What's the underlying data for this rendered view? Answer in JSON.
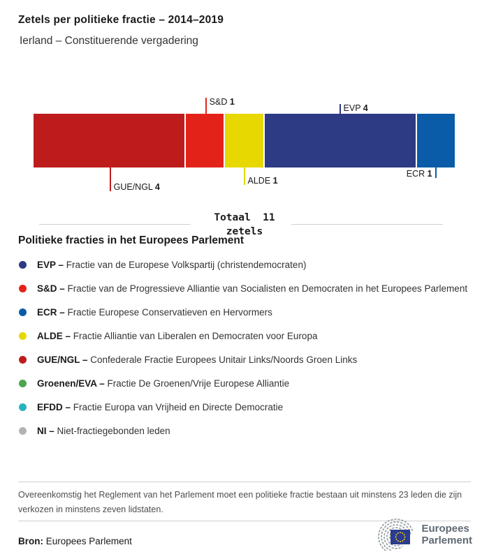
{
  "header": {
    "title": "Zetels per politieke fractie – 2014–2019",
    "subtitle": "Ierland – Constituerende vergadering"
  },
  "chart_data": {
    "type": "bar",
    "orientation": "horizontal-stacked",
    "title": "Zetels per politieke fractie – 2014–2019",
    "subtitle": "Ierland – Constituerende vergadering",
    "total_seats": 11,
    "total_label_line1": "Totaal  11",
    "total_label_line2": "zetels",
    "series": [
      {
        "name": "GUE/NGL",
        "seats": 4,
        "color": "#be1c1c"
      },
      {
        "name": "S&D",
        "seats": 1,
        "color": "#e3231a"
      },
      {
        "name": "ALDE",
        "seats": 1,
        "color": "#e6d800"
      },
      {
        "name": "EVP",
        "seats": 4,
        "color": "#2d3a84"
      },
      {
        "name": "ECR",
        "seats": 1,
        "color": "#0a5ca8"
      }
    ],
    "callouts": [
      {
        "label": "S&D",
        "value": 1,
        "side": "top",
        "tick_len": 23,
        "text_side": "right"
      },
      {
        "label": "EVP",
        "value": 4,
        "side": "top",
        "tick_len": 14,
        "text_side": "right"
      },
      {
        "label": "GUE/NGL",
        "value": 4,
        "side": "bottom",
        "tick_len": 34,
        "text_side": "right"
      },
      {
        "label": "ALDE",
        "value": 1,
        "side": "bottom",
        "tick_len": 25,
        "text_side": "right"
      },
      {
        "label": "ECR",
        "value": 1,
        "side": "bottom",
        "tick_len": 15,
        "text_side": "left"
      }
    ],
    "legend_position": "below",
    "grid": false
  },
  "legend": {
    "heading": "Politieke fracties in het Europees Parlement",
    "items": [
      {
        "abbr": "EVP –",
        "desc": "Fractie van de Europese Volkspartij (christendemocraten)",
        "color": "#2d3a84"
      },
      {
        "abbr": "S&D –",
        "desc": "Fractie van de Progressieve Alliantie van Socialisten en Democraten in het Europees Parlement",
        "color": "#e3231a"
      },
      {
        "abbr": "ECR –",
        "desc": "Fractie Europese Conservatieven en Hervormers",
        "color": "#0a5ca8"
      },
      {
        "abbr": "ALDE –",
        "desc": "Fractie Alliantie van Liberalen en Democraten voor Europa",
        "color": "#e6d800"
      },
      {
        "abbr": "GUE/NGL –",
        "desc": "Confederale Fractie Europees Unitair Links/Noords Groen Links",
        "color": "#be1c1c"
      },
      {
        "abbr": "Groenen/EVA –",
        "desc": "Fractie De Groenen/Vrije Europese Alliantie",
        "color": "#4ca54c"
      },
      {
        "abbr": "EFDD –",
        "desc": "Fractie Europa van Vrijheid en Directe Democratie",
        "color": "#28b3be"
      },
      {
        "abbr": "NI –",
        "desc": "Niet-fractiegebonden leden",
        "color": "#b3b3b3"
      }
    ]
  },
  "footnote": "Overeenkomstig het Reglement van het Parlement moet een politieke fractie bestaan uit minstens 23 leden die zijn verkozen in minstens zeven lidstaten.",
  "source": {
    "label": "Bron:",
    "value": "Europees Parlement"
  },
  "logo": {
    "line1": "Europees",
    "line2": "Parlement",
    "text_color": "#5f6973",
    "arc_gray": "#9aa2a8",
    "flag_blue": "#2b3c8e",
    "star_yellow": "#f7d117"
  }
}
